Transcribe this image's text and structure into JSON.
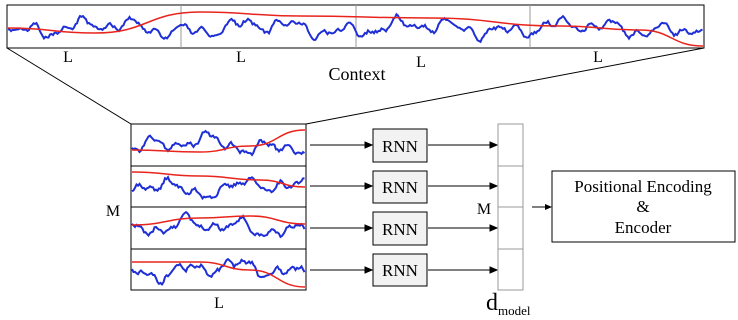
{
  "context": {
    "label": "Context",
    "segment_labels": [
      "L",
      "L",
      "L",
      "L"
    ]
  },
  "stack": {
    "rows_label": "M",
    "length_label": "L"
  },
  "rnn": {
    "labels": [
      "RNN",
      "RNN",
      "RNN",
      "RNN"
    ]
  },
  "embedding": {
    "rows_label": "M",
    "dim_label_main": "d",
    "dim_label_sub": "model"
  },
  "encoder": {
    "line1": "Positional Encoding",
    "line2": "&",
    "line3": "Encoder"
  },
  "colors": {
    "signal": "#1f2fd6",
    "trend": "#e8241c",
    "frame": "#000000",
    "rnn_fill": "#f2f2f2",
    "divider": "#9a9a9a"
  }
}
